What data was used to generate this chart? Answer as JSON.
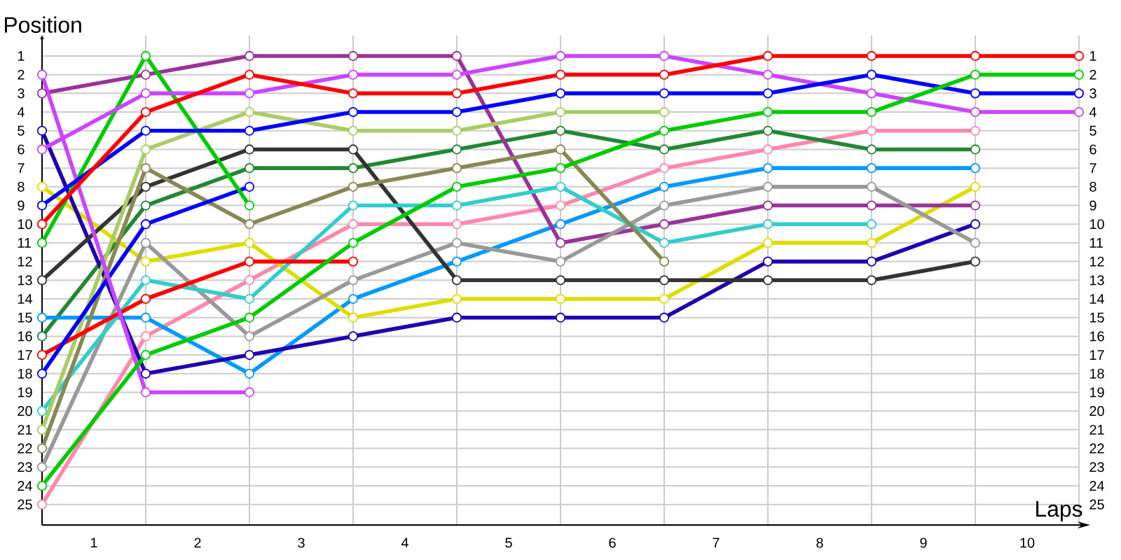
{
  "chart_data": {
    "type": "line",
    "xlabel": "Laps",
    "ylabel": "Position",
    "x": [
      0,
      1,
      2,
      3,
      4,
      5,
      6,
      7,
      8,
      9,
      10
    ],
    "xlim": [
      0,
      10
    ],
    "xticks": [
      {
        "value": 0,
        "label": null
      },
      {
        "value": 0.5,
        "label": "1"
      },
      {
        "value": 1,
        "label": null
      },
      {
        "value": 1.5,
        "label": "2"
      },
      {
        "value": 2,
        "label": null
      },
      {
        "value": 2.5,
        "label": "3"
      },
      {
        "value": 3,
        "label": null
      },
      {
        "value": 3.5,
        "label": "4"
      },
      {
        "value": 4,
        "label": null
      },
      {
        "value": 4.5,
        "label": "5"
      },
      {
        "value": 5,
        "label": null
      },
      {
        "value": 5.5,
        "label": "6"
      },
      {
        "value": 6,
        "label": null
      },
      {
        "value": 6.5,
        "label": "7"
      },
      {
        "value": 7,
        "label": null
      },
      {
        "value": 7.5,
        "label": "8"
      },
      {
        "value": 8,
        "label": null
      },
      {
        "value": 8.5,
        "label": "9"
      },
      {
        "value": 9,
        "label": null
      },
      {
        "value": 9.5,
        "label": "10"
      },
      {
        "value": 10,
        "label": null
      }
    ],
    "ylim": [
      26.1,
      -0.1
    ],
    "yticks": [
      1,
      2,
      3,
      4,
      5,
      6,
      7,
      8,
      9,
      10,
      11,
      12,
      13,
      14,
      15,
      16,
      17,
      18,
      19,
      20,
      21,
      22,
      23,
      24,
      25
    ],
    "y2lim": [
      26.1,
      -0.1
    ],
    "y2ticks": [
      1,
      2,
      3,
      4,
      5,
      6,
      7,
      8,
      9,
      10,
      11,
      12,
      13,
      14,
      15,
      16,
      17,
      18,
      19,
      20,
      21,
      22,
      23,
      24,
      25
    ],
    "grid": true,
    "marker": "circle",
    "line_style": "solid",
    "series": [
      {
        "color": "#ff88aa",
        "values": [
          25,
          16,
          13,
          10,
          10,
          9,
          7,
          6,
          5,
          5,
          null
        ]
      },
      {
        "color": "#228833",
        "values": [
          16,
          9,
          7,
          7,
          6,
          5,
          6,
          5,
          6,
          6,
          null
        ]
      },
      {
        "color": "#0099ff",
        "values": [
          15,
          15,
          18,
          14,
          12,
          10,
          8,
          7,
          7,
          7,
          null
        ]
      },
      {
        "color": "#dddd00",
        "values": [
          8,
          12,
          11,
          15,
          14,
          14,
          14,
          11,
          11,
          8,
          null
        ]
      },
      {
        "color": "#993399",
        "values": [
          3,
          2,
          1,
          1,
          1,
          11,
          10,
          9,
          9,
          9,
          null
        ]
      },
      {
        "color": "#1f00b0",
        "values": [
          5,
          18,
          17,
          16,
          15,
          15,
          15,
          12,
          12,
          10,
          null
        ]
      },
      {
        "color": "#999999",
        "values": [
          23,
          11,
          16,
          13,
          11,
          12,
          9,
          8,
          8,
          11,
          null
        ]
      },
      {
        "color": "#333333",
        "values": [
          13,
          8,
          6,
          6,
          13,
          13,
          13,
          13,
          13,
          12,
          null
        ]
      },
      {
        "color": "#33cccc",
        "values": [
          20,
          13,
          14,
          9,
          9,
          8,
          11,
          10,
          10,
          null,
          null
        ]
      },
      {
        "color": "#aacc66",
        "values": [
          21,
          6,
          4,
          5,
          5,
          4,
          4,
          null,
          null,
          null,
          null
        ]
      },
      {
        "color": "#888855",
        "values": [
          22,
          7,
          10,
          8,
          7,
          6,
          12,
          null,
          null,
          null,
          null
        ]
      },
      {
        "color": "#ff0000",
        "values": [
          17,
          14,
          12,
          12,
          null,
          null,
          null,
          null,
          null,
          null,
          null
        ]
      },
      {
        "color": "#0000ff",
        "values": [
          18,
          10,
          8,
          null,
          null,
          null,
          null,
          null,
          null,
          null,
          null
        ]
      },
      {
        "color": "#00cc00",
        "values": [
          11,
          1,
          9,
          null,
          null,
          null,
          null,
          null,
          null,
          null,
          null
        ]
      },
      {
        "color": "#cc44ff",
        "values": [
          2,
          19,
          19,
          null,
          null,
          null,
          null,
          null,
          null,
          null,
          null
        ]
      },
      {
        "color": "#cc44ff",
        "values": [
          6,
          3,
          3,
          2,
          2,
          1,
          1,
          2,
          3,
          4,
          4
        ]
      },
      {
        "color": "#0000ff",
        "values": [
          9,
          5,
          5,
          4,
          4,
          3,
          3,
          3,
          2,
          3,
          3
        ]
      },
      {
        "color": "#00cc00",
        "values": [
          24,
          17,
          15,
          11,
          8,
          7,
          5,
          4,
          4,
          2,
          2
        ]
      },
      {
        "color": "#ff0000",
        "values": [
          10,
          4,
          2,
          3,
          3,
          2,
          2,
          1,
          1,
          1,
          1
        ]
      }
    ]
  }
}
